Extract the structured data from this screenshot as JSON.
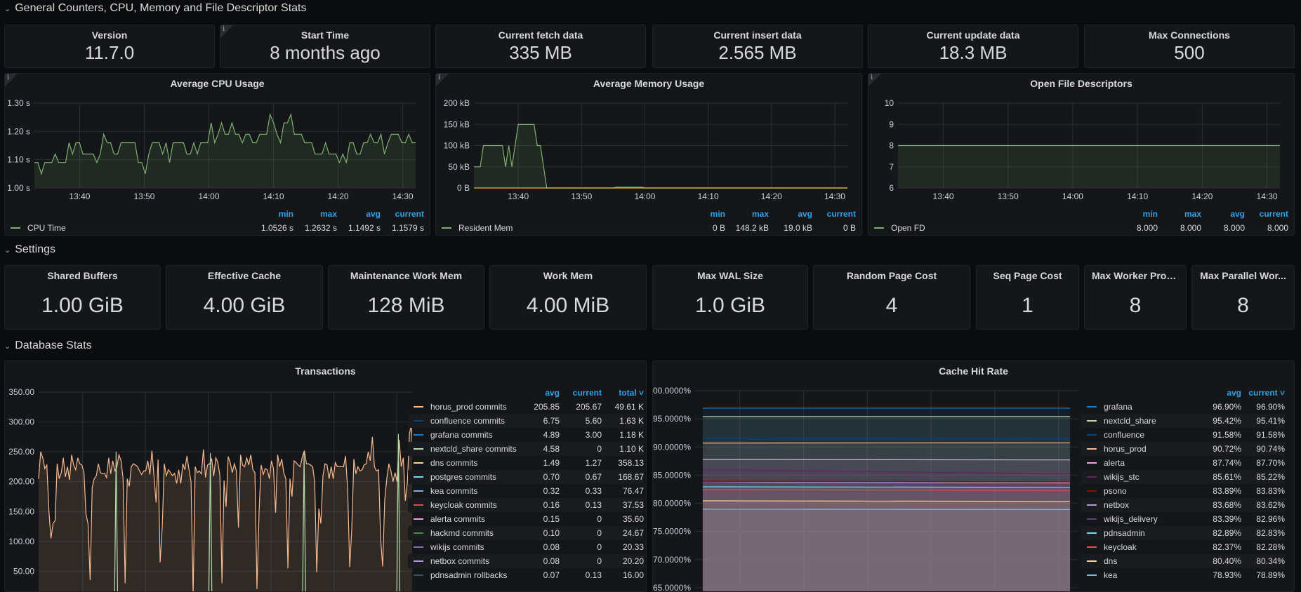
{
  "rows": {
    "general": "General Counters, CPU, Memory and File Descriptor Stats",
    "settings": "Settings",
    "database": "Database Stats"
  },
  "stats": [
    {
      "title": "Version",
      "value": "11.7.0",
      "info": false
    },
    {
      "title": "Start Time",
      "value": "8 months ago",
      "info": true
    },
    {
      "title": "Current fetch data",
      "value": "335 MB",
      "info": false
    },
    {
      "title": "Current insert data",
      "value": "2.565 MB",
      "info": false
    },
    {
      "title": "Current update data",
      "value": "18.3 MB",
      "info": false
    },
    {
      "title": "Max Connections",
      "value": "500",
      "info": false
    }
  ],
  "settings": [
    {
      "title": "Shared Buffers",
      "value": "1.00 GiB"
    },
    {
      "title": "Effective Cache",
      "value": "4.00 GiB"
    },
    {
      "title": "Maintenance Work Mem",
      "value": "128 MiB"
    },
    {
      "title": "Work Mem",
      "value": "4.00 MiB"
    },
    {
      "title": "Max WAL Size",
      "value": "1.0 GiB"
    },
    {
      "title": "Random Page Cost",
      "value": "4"
    },
    {
      "title": "Seq Page Cost",
      "value": "1"
    },
    {
      "title": "Max Worker Proc...",
      "value": "8"
    },
    {
      "title": "Max Parallel Wor...",
      "value": "8"
    }
  ],
  "info_icon": "i",
  "colors": {
    "accent": "#33a2e5",
    "background": "#0b0c0e",
    "panel": "#141619"
  },
  "chart_data": [
    {
      "type": "line",
      "title": "Average CPU Usage",
      "xlim": [
        "13:33",
        "14:32"
      ],
      "xticks": [
        "13:40",
        "13:50",
        "14:00",
        "14:10",
        "14:20",
        "14:30"
      ],
      "ylim": [
        1.0,
        1.3
      ],
      "yticks": [
        "1.00 s",
        "1.10 s",
        "1.20 s",
        "1.30 s"
      ],
      "ytick_values": [
        1.0,
        1.1,
        1.2,
        1.3
      ],
      "legend_columns": [
        "min",
        "max",
        "avg",
        "current"
      ],
      "series": [
        {
          "name": "CPU Time",
          "color": "#7eb26d",
          "fill": true,
          "stats": [
            "1.0526 s",
            "1.2632 s",
            "1.1492 s",
            "1.1579 s"
          ],
          "values": [
            1.09,
            1.09,
            1.05,
            1.09,
            1.09,
            1.09,
            1.12,
            1.09,
            1.09,
            1.09,
            1.16,
            1.12,
            1.16,
            1.16,
            1.12,
            1.12,
            1.12,
            1.12,
            1.09,
            1.12,
            1.19,
            1.16,
            1.16,
            1.12,
            1.12,
            1.16,
            1.16,
            1.16,
            1.16,
            1.16,
            1.09,
            1.09,
            1.05,
            1.12,
            1.16,
            1.16,
            1.16,
            1.12,
            1.16,
            1.09,
            1.16,
            1.16,
            1.16,
            1.16,
            1.12,
            1.12,
            1.16,
            1.12,
            1.16,
            1.16,
            1.16,
            1.23,
            1.16,
            1.19,
            1.23,
            1.19,
            1.19,
            1.23,
            1.19,
            1.19,
            1.16,
            1.19,
            1.19,
            1.16,
            1.16,
            1.19,
            1.19,
            1.19,
            1.26,
            1.23,
            1.19,
            1.16,
            1.23,
            1.23,
            1.26,
            1.19,
            1.19,
            1.19,
            1.16,
            1.16,
            1.16,
            1.12,
            1.12,
            1.12,
            1.16,
            1.12,
            1.12,
            1.12,
            1.09,
            1.12,
            1.09,
            1.16,
            1.16,
            1.12,
            1.12,
            1.16,
            1.16,
            1.19,
            1.16,
            1.16,
            1.19,
            1.12,
            1.16,
            1.19,
            1.19,
            1.19,
            1.16,
            1.16,
            1.19,
            1.16,
            1.16
          ]
        }
      ]
    },
    {
      "type": "line",
      "title": "Average Memory Usage",
      "xlim": [
        "13:33",
        "14:32"
      ],
      "xticks": [
        "13:40",
        "13:50",
        "14:00",
        "14:10",
        "14:20",
        "14:30"
      ],
      "ylim": [
        0,
        200
      ],
      "yticks": [
        "0 B",
        "50 kB",
        "100 kB",
        "150 kB",
        "200 kB"
      ],
      "ytick_values": [
        0,
        50,
        100,
        150,
        200
      ],
      "yunit": "kB",
      "legend_columns": [
        "min",
        "max",
        "avg",
        "current"
      ],
      "series": [
        {
          "name": "Resident Mem",
          "color": "#7eb26d",
          "fill": true,
          "stats": [
            "0 B",
            "148.2 kB",
            "19.0 kB",
            "0 B"
          ],
          "points": [
            [
              "13:33",
              50
            ],
            [
              "13:34",
              50
            ],
            [
              "13:34:30",
              100
            ],
            [
              "13:37:30",
              100
            ],
            [
              "13:38",
              50
            ],
            [
              "13:38:30",
              100
            ],
            [
              "13:39",
              50
            ],
            [
              "13:40",
              150
            ],
            [
              "13:42:30",
              150
            ],
            [
              "13:43",
              100
            ],
            [
              "13:43:30",
              100
            ],
            [
              "13:44:30",
              0
            ],
            [
              "13:55",
              0
            ],
            [
              "13:55:30",
              2
            ],
            [
              "13:59:30",
              2
            ],
            [
              "14:00",
              0
            ],
            [
              "14:32",
              0
            ]
          ]
        },
        {
          "name": "Virtual Mem",
          "color": "#eab839",
          "fill": false,
          "stats": [
            "0 B",
            "0 B",
            "0 B",
            "0 B"
          ],
          "points": [
            [
              "13:33",
              0
            ],
            [
              "14:32",
              0
            ]
          ]
        }
      ]
    },
    {
      "type": "line",
      "title": "Open File Descriptors",
      "xlim": [
        "13:33",
        "14:32"
      ],
      "xticks": [
        "13:40",
        "13:50",
        "14:00",
        "14:10",
        "14:20",
        "14:30"
      ],
      "ylim": [
        6,
        10
      ],
      "yticks": [
        "6",
        "7",
        "8",
        "9",
        "10"
      ],
      "ytick_values": [
        6,
        7,
        8,
        9,
        10
      ],
      "legend_columns": [
        "min",
        "max",
        "avg",
        "current"
      ],
      "series": [
        {
          "name": "Open FD",
          "color": "#7eb26d",
          "fill": true,
          "stats": [
            "8.000",
            "8.000",
            "8.000",
            "8.000"
          ],
          "points": [
            [
              "13:33",
              8
            ],
            [
              "14:32",
              8
            ]
          ]
        }
      ]
    },
    {
      "type": "line",
      "title": "Transactions",
      "xlim": [
        "13:33",
        "14:33"
      ],
      "xticks": [
        "13:40",
        "13:50",
        "14:00",
        "14:10",
        "14:20",
        "14:30"
      ],
      "ylim": [
        0,
        350
      ],
      "yticks": [
        "50.00",
        "100.00",
        "150.00",
        "200.00",
        "250.00",
        "300.00",
        "350.00"
      ],
      "ytick_values": [
        50,
        100,
        150,
        200,
        250,
        300,
        350
      ],
      "legend_columns": [
        "avg",
        "current",
        "total"
      ],
      "sort_column": "total",
      "series": [
        {
          "name": "horus_prod commits",
          "color": "#f9ba8f",
          "fill": true,
          "stats": [
            "205.85",
            "205.67",
            "49.61 K"
          ],
          "values": [
            205,
            250,
            240,
            222,
            228,
            150,
            105,
            130,
            135,
            230,
            205,
            215,
            240,
            208,
            225,
            203,
            245,
            228,
            220,
            240,
            230,
            228,
            215,
            145,
            130,
            35,
            190,
            205,
            210,
            230,
            215,
            213,
            214,
            207,
            240,
            213,
            235,
            218,
            225,
            245,
            235,
            205,
            30,
            205,
            192,
            225,
            230,
            228,
            225,
            218,
            212,
            218,
            218,
            235,
            212,
            252,
            210,
            165,
            237,
            65,
            125,
            230,
            210,
            220,
            215,
            210,
            214,
            197,
            220,
            197,
            230,
            220,
            243,
            220,
            200,
            10,
            225,
            215,
            218,
            213,
            254,
            207,
            228,
            230,
            238,
            209,
            240,
            232,
            210,
            30,
            202,
            158,
            242,
            232,
            215,
            230,
            218,
            123,
            245,
            228,
            225,
            240,
            228,
            245,
            220,
            215,
            20,
            150,
            228,
            212,
            222,
            220,
            205,
            235,
            222,
            148,
            245,
            225,
            238,
            215,
            205,
            55,
            205,
            175,
            235,
            232,
            228,
            225,
            242,
            252,
            230,
            230,
            228,
            225,
            200,
            48,
            155,
            130,
            210,
            230,
            228,
            205,
            225,
            205,
            232,
            225,
            225,
            225,
            225,
            243,
            185,
            57,
            120,
            238,
            213,
            225,
            218,
            220,
            228,
            230,
            250,
            235,
            275,
            225,
            218,
            220,
            105,
            58,
            170,
            205,
            230,
            218,
            200,
            215,
            200,
            270,
            225,
            240,
            168,
            200,
            280,
            298,
            193,
            205
          ]
        },
        {
          "name": "confluence commits",
          "color": "#0a437c",
          "stats": [
            "6.75",
            "5.60",
            "1.63 K"
          ]
        },
        {
          "name": "grafana commits",
          "color": "#1f78c1",
          "stats": [
            "4.89",
            "3.00",
            "1.18 K"
          ]
        },
        {
          "name": "nextcld_share commits",
          "color": "#b7dbab",
          "fill": false,
          "stats": [
            "4.58",
            "0",
            "1.10 K"
          ],
          "points": [
            [
              "13:33",
              0
            ],
            [
              "13:45:05",
              0
            ],
            [
              "13:45:20",
              250
            ],
            [
              "13:45:35",
              0
            ],
            [
              "14:00:05",
              0
            ],
            [
              "14:00:20",
              248
            ],
            [
              "14:00:35",
              0
            ],
            [
              "14:15:00",
              0
            ],
            [
              "14:15:15",
              248
            ],
            [
              "14:15:30",
              0
            ],
            [
              "14:30:00",
              0
            ],
            [
              "14:30:15",
              280
            ],
            [
              "14:30:30",
              0
            ],
            [
              "14:33",
              0
            ]
          ]
        },
        {
          "name": "dns commits",
          "color": "#f4d598",
          "stats": [
            "1.49",
            "1.27",
            "358.13"
          ]
        },
        {
          "name": "postgres commits",
          "color": "#70dbed",
          "stats": [
            "0.70",
            "0.67",
            "168.67"
          ]
        },
        {
          "name": "kea commits",
          "color": "#82b5d8",
          "stats": [
            "0.32",
            "0.33",
            "76.47"
          ]
        },
        {
          "name": "keycloak commits",
          "color": "#e24d42",
          "stats": [
            "0.16",
            "0.13",
            "37.53"
          ]
        },
        {
          "name": "alerta commits",
          "color": "#e5a8e2",
          "stats": [
            "0.15",
            "0",
            "35.60"
          ]
        },
        {
          "name": "hackmd commits",
          "color": "#508642",
          "stats": [
            "0.10",
            "0",
            "24.67"
          ]
        },
        {
          "name": "wikijs commits",
          "color": "#806eb7",
          "stats": [
            "0.08",
            "0",
            "20.33"
          ]
        },
        {
          "name": "netbox commits",
          "color": "#ba96dc",
          "stats": [
            "0.08",
            "0",
            "20.20"
          ]
        },
        {
          "name": "pdnsadmin rollbacks",
          "color": "#2f575e",
          "stats": [
            "0.07",
            "0.13",
            "16.00"
          ]
        }
      ]
    },
    {
      "type": "line",
      "title": "Cache Hit Rate",
      "xlim": [
        "13:33",
        "14:33"
      ],
      "xticks": [
        "13:40",
        "13:50",
        "14:00",
        "14:10",
        "14:20",
        "14:30"
      ],
      "ylim": [
        62,
        100
      ],
      "yticks": [
        "65.0000%",
        "70.0000%",
        "75.0000%",
        "80.0000%",
        "85.0000%",
        "90.0000%",
        "95.0000%",
        "100.0000%"
      ],
      "ytick_values": [
        65,
        70,
        75,
        80,
        85,
        90,
        95,
        100
      ],
      "legend_columns": [
        "avg",
        "current"
      ],
      "sort_column": "current",
      "series": [
        {
          "name": "grafana",
          "color": "#1f78c1",
          "stats": [
            "96.90%",
            "96.90%"
          ],
          "start": 96.9,
          "end": 96.9
        },
        {
          "name": "nextcld_share",
          "color": "#b7dbab",
          "stats": [
            "95.42%",
            "95.41%"
          ],
          "start": 95.42,
          "end": 95.41
        },
        {
          "name": "confluence",
          "color": "#0a437c",
          "stats": [
            "91.58%",
            "91.58%"
          ],
          "start": 91.58,
          "end": 91.58
        },
        {
          "name": "horus_prod",
          "color": "#f9ba8f",
          "stats": [
            "90.72%",
            "90.74%"
          ],
          "start": 90.7,
          "end": 90.74
        },
        {
          "name": "alerta",
          "color": "#e5a8e2",
          "stats": [
            "87.74%",
            "87.70%"
          ],
          "start": 87.78,
          "end": 87.7
        },
        {
          "name": "wikijs_stc",
          "color": "#6d1f62",
          "stats": [
            "85.61%",
            "85.22%"
          ],
          "start": 86.0,
          "end": 85.22
        },
        {
          "name": "psono",
          "color": "#890f02",
          "stats": [
            "83.89%",
            "83.83%"
          ],
          "start": 83.93,
          "end": 83.83
        },
        {
          "name": "netbox",
          "color": "#ba96dc",
          "stats": [
            "83.68%",
            "83.62%"
          ],
          "start": 83.72,
          "end": 83.62
        },
        {
          "name": "wikijs_delivery",
          "color": "#584477",
          "stats": [
            "83.39%",
            "82.96%"
          ],
          "start": 83.7,
          "end": 82.96
        },
        {
          "name": "pdnsadmin",
          "color": "#70dbed",
          "stats": [
            "82.89%",
            "82.83%"
          ],
          "start": 82.93,
          "end": 82.83
        },
        {
          "name": "keycloak",
          "color": "#e24d42",
          "stats": [
            "82.37%",
            "82.28%"
          ],
          "start": 82.42,
          "end": 82.28
        },
        {
          "name": "dns",
          "color": "#f4d598",
          "stats": [
            "80.40%",
            "80.34%"
          ],
          "start": 80.44,
          "end": 80.34
        },
        {
          "name": "kea",
          "color": "#82b5d8",
          "stats": [
            "78.93%",
            "78.89%"
          ],
          "start": 78.96,
          "end": 78.89
        }
      ]
    }
  ]
}
